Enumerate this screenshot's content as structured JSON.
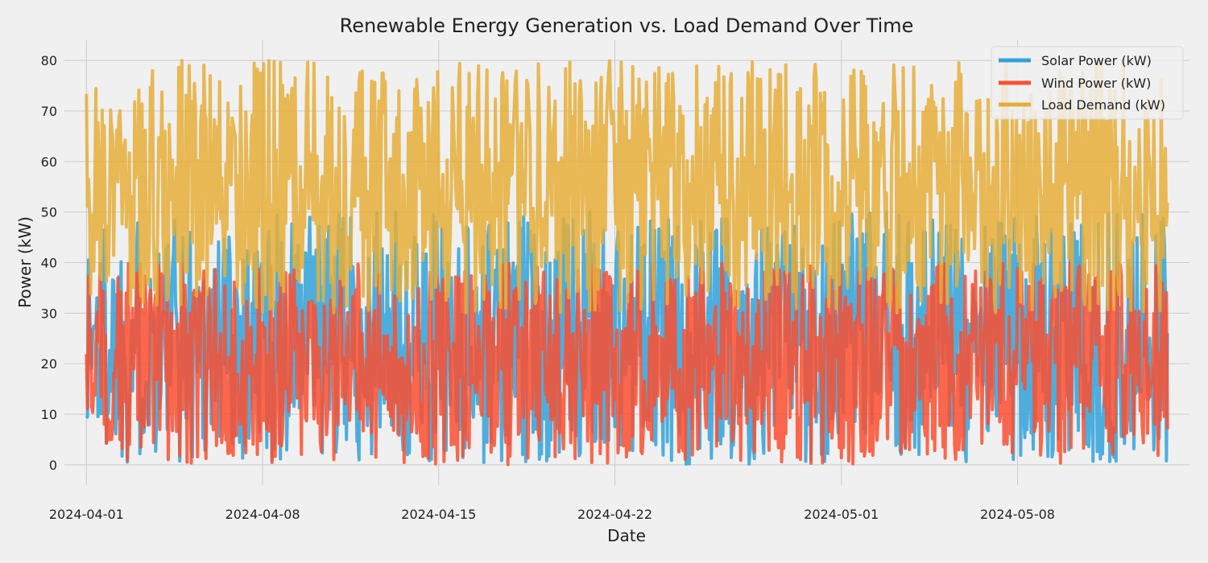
{
  "chart_data": {
    "type": "line",
    "title": "Renewable Energy Generation vs. Load Demand Over Time",
    "xlabel": "Date",
    "ylabel": "Power (kW)",
    "x_start": "2024-04-01 00:00",
    "x_end": "2024-05-13 23:00",
    "x_step": "hourly",
    "xlim": [
      "2024-03-31 03:00",
      "2024-05-14 20:00"
    ],
    "ylim": [
      -4,
      84
    ],
    "x_ticks": [
      "2024-04-01",
      "2024-04-08",
      "2024-04-15",
      "2024-04-22",
      "2024-05-01",
      "2024-05-08"
    ],
    "y_ticks": [
      0,
      10,
      20,
      30,
      40,
      50,
      60,
      70,
      80
    ],
    "grid": true,
    "legend_position": "top-right",
    "series": [
      {
        "name": "Solar Power (kW)",
        "color": "#30a2da",
        "range": [
          0,
          50
        ],
        "mean": 25
      },
      {
        "name": "Wind Power (kW)",
        "color": "#fc4f30",
        "range": [
          0,
          40
        ],
        "mean": 20
      },
      {
        "name": "Load Demand (kW)",
        "color": "#e5ae38",
        "range": [
          30,
          80
        ],
        "mean": 55
      }
    ]
  }
}
